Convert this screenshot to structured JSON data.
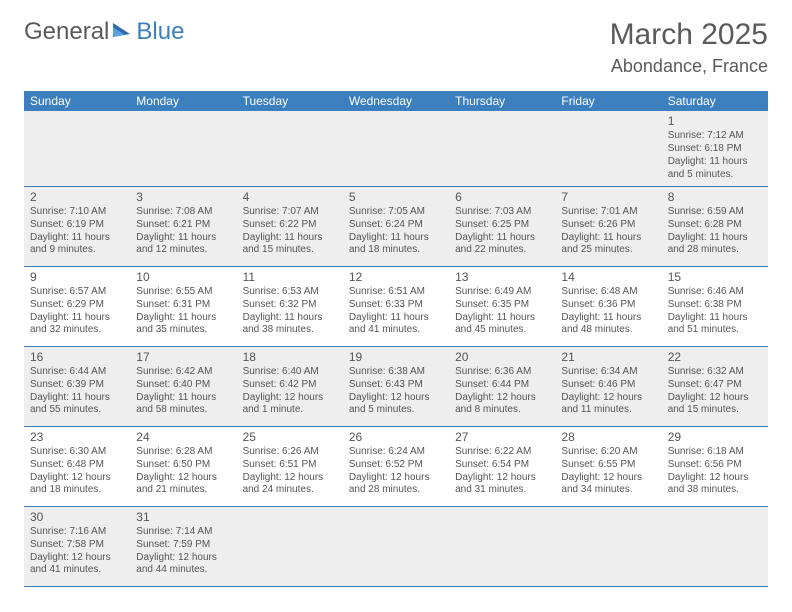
{
  "logo": {
    "part1": "General",
    "part2": "Blue"
  },
  "title": "March 2025",
  "location": "Abondance, France",
  "header_color": "#3b7fbf",
  "header_text_color": "#ffffff",
  "border_color": "#3b7fbf",
  "alt_row_bg": "#eeeeee",
  "font_family": "Arial",
  "header_fontsize": 12,
  "cell_fontsize": 10,
  "daynum_fontsize": 12,
  "title_fontsize": 30,
  "location_fontsize": 18,
  "dayNames": [
    "Sunday",
    "Monday",
    "Tuesday",
    "Wednesday",
    "Thursday",
    "Friday",
    "Saturday"
  ],
  "weeks": [
    [
      {
        "n": "",
        "sr": "",
        "ss": "",
        "d1": "",
        "d2": ""
      },
      {
        "n": "",
        "sr": "",
        "ss": "",
        "d1": "",
        "d2": ""
      },
      {
        "n": "",
        "sr": "",
        "ss": "",
        "d1": "",
        "d2": ""
      },
      {
        "n": "",
        "sr": "",
        "ss": "",
        "d1": "",
        "d2": ""
      },
      {
        "n": "",
        "sr": "",
        "ss": "",
        "d1": "",
        "d2": ""
      },
      {
        "n": "",
        "sr": "",
        "ss": "",
        "d1": "",
        "d2": ""
      },
      {
        "n": "1",
        "sr": "Sunrise: 7:12 AM",
        "ss": "Sunset: 6:18 PM",
        "d1": "Daylight: 11 hours",
        "d2": "and 5 minutes."
      }
    ],
    [
      {
        "n": "2",
        "sr": "Sunrise: 7:10 AM",
        "ss": "Sunset: 6:19 PM",
        "d1": "Daylight: 11 hours",
        "d2": "and 9 minutes."
      },
      {
        "n": "3",
        "sr": "Sunrise: 7:08 AM",
        "ss": "Sunset: 6:21 PM",
        "d1": "Daylight: 11 hours",
        "d2": "and 12 minutes."
      },
      {
        "n": "4",
        "sr": "Sunrise: 7:07 AM",
        "ss": "Sunset: 6:22 PM",
        "d1": "Daylight: 11 hours",
        "d2": "and 15 minutes."
      },
      {
        "n": "5",
        "sr": "Sunrise: 7:05 AM",
        "ss": "Sunset: 6:24 PM",
        "d1": "Daylight: 11 hours",
        "d2": "and 18 minutes."
      },
      {
        "n": "6",
        "sr": "Sunrise: 7:03 AM",
        "ss": "Sunset: 6:25 PM",
        "d1": "Daylight: 11 hours",
        "d2": "and 22 minutes."
      },
      {
        "n": "7",
        "sr": "Sunrise: 7:01 AM",
        "ss": "Sunset: 6:26 PM",
        "d1": "Daylight: 11 hours",
        "d2": "and 25 minutes."
      },
      {
        "n": "8",
        "sr": "Sunrise: 6:59 AM",
        "ss": "Sunset: 6:28 PM",
        "d1": "Daylight: 11 hours",
        "d2": "and 28 minutes."
      }
    ],
    [
      {
        "n": "9",
        "sr": "Sunrise: 6:57 AM",
        "ss": "Sunset: 6:29 PM",
        "d1": "Daylight: 11 hours",
        "d2": "and 32 minutes."
      },
      {
        "n": "10",
        "sr": "Sunrise: 6:55 AM",
        "ss": "Sunset: 6:31 PM",
        "d1": "Daylight: 11 hours",
        "d2": "and 35 minutes."
      },
      {
        "n": "11",
        "sr": "Sunrise: 6:53 AM",
        "ss": "Sunset: 6:32 PM",
        "d1": "Daylight: 11 hours",
        "d2": "and 38 minutes."
      },
      {
        "n": "12",
        "sr": "Sunrise: 6:51 AM",
        "ss": "Sunset: 6:33 PM",
        "d1": "Daylight: 11 hours",
        "d2": "and 41 minutes."
      },
      {
        "n": "13",
        "sr": "Sunrise: 6:49 AM",
        "ss": "Sunset: 6:35 PM",
        "d1": "Daylight: 11 hours",
        "d2": "and 45 minutes."
      },
      {
        "n": "14",
        "sr": "Sunrise: 6:48 AM",
        "ss": "Sunset: 6:36 PM",
        "d1": "Daylight: 11 hours",
        "d2": "and 48 minutes."
      },
      {
        "n": "15",
        "sr": "Sunrise: 6:46 AM",
        "ss": "Sunset: 6:38 PM",
        "d1": "Daylight: 11 hours",
        "d2": "and 51 minutes."
      }
    ],
    [
      {
        "n": "16",
        "sr": "Sunrise: 6:44 AM",
        "ss": "Sunset: 6:39 PM",
        "d1": "Daylight: 11 hours",
        "d2": "and 55 minutes."
      },
      {
        "n": "17",
        "sr": "Sunrise: 6:42 AM",
        "ss": "Sunset: 6:40 PM",
        "d1": "Daylight: 11 hours",
        "d2": "and 58 minutes."
      },
      {
        "n": "18",
        "sr": "Sunrise: 6:40 AM",
        "ss": "Sunset: 6:42 PM",
        "d1": "Daylight: 12 hours",
        "d2": "and 1 minute."
      },
      {
        "n": "19",
        "sr": "Sunrise: 6:38 AM",
        "ss": "Sunset: 6:43 PM",
        "d1": "Daylight: 12 hours",
        "d2": "and 5 minutes."
      },
      {
        "n": "20",
        "sr": "Sunrise: 6:36 AM",
        "ss": "Sunset: 6:44 PM",
        "d1": "Daylight: 12 hours",
        "d2": "and 8 minutes."
      },
      {
        "n": "21",
        "sr": "Sunrise: 6:34 AM",
        "ss": "Sunset: 6:46 PM",
        "d1": "Daylight: 12 hours",
        "d2": "and 11 minutes."
      },
      {
        "n": "22",
        "sr": "Sunrise: 6:32 AM",
        "ss": "Sunset: 6:47 PM",
        "d1": "Daylight: 12 hours",
        "d2": "and 15 minutes."
      }
    ],
    [
      {
        "n": "23",
        "sr": "Sunrise: 6:30 AM",
        "ss": "Sunset: 6:48 PM",
        "d1": "Daylight: 12 hours",
        "d2": "and 18 minutes."
      },
      {
        "n": "24",
        "sr": "Sunrise: 6:28 AM",
        "ss": "Sunset: 6:50 PM",
        "d1": "Daylight: 12 hours",
        "d2": "and 21 minutes."
      },
      {
        "n": "25",
        "sr": "Sunrise: 6:26 AM",
        "ss": "Sunset: 6:51 PM",
        "d1": "Daylight: 12 hours",
        "d2": "and 24 minutes."
      },
      {
        "n": "26",
        "sr": "Sunrise: 6:24 AM",
        "ss": "Sunset: 6:52 PM",
        "d1": "Daylight: 12 hours",
        "d2": "and 28 minutes."
      },
      {
        "n": "27",
        "sr": "Sunrise: 6:22 AM",
        "ss": "Sunset: 6:54 PM",
        "d1": "Daylight: 12 hours",
        "d2": "and 31 minutes."
      },
      {
        "n": "28",
        "sr": "Sunrise: 6:20 AM",
        "ss": "Sunset: 6:55 PM",
        "d1": "Daylight: 12 hours",
        "d2": "and 34 minutes."
      },
      {
        "n": "29",
        "sr": "Sunrise: 6:18 AM",
        "ss": "Sunset: 6:56 PM",
        "d1": "Daylight: 12 hours",
        "d2": "and 38 minutes."
      }
    ],
    [
      {
        "n": "30",
        "sr": "Sunrise: 7:16 AM",
        "ss": "Sunset: 7:58 PM",
        "d1": "Daylight: 12 hours",
        "d2": "and 41 minutes."
      },
      {
        "n": "31",
        "sr": "Sunrise: 7:14 AM",
        "ss": "Sunset: 7:59 PM",
        "d1": "Daylight: 12 hours",
        "d2": "and 44 minutes."
      },
      {
        "n": "",
        "sr": "",
        "ss": "",
        "d1": "",
        "d2": ""
      },
      {
        "n": "",
        "sr": "",
        "ss": "",
        "d1": "",
        "d2": ""
      },
      {
        "n": "",
        "sr": "",
        "ss": "",
        "d1": "",
        "d2": ""
      },
      {
        "n": "",
        "sr": "",
        "ss": "",
        "d1": "",
        "d2": ""
      },
      {
        "n": "",
        "sr": "",
        "ss": "",
        "d1": "",
        "d2": ""
      }
    ]
  ]
}
